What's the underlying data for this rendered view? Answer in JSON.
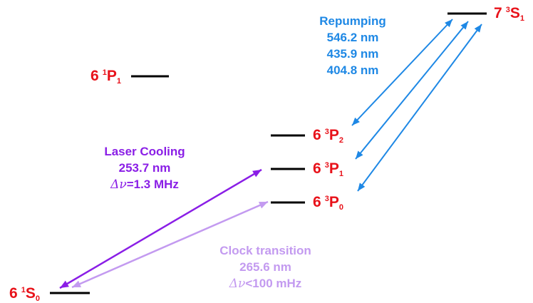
{
  "colors": {
    "level_text": "#e8121a",
    "level_line": "#000000",
    "repump": "#1e88e5",
    "cooling": "#8a1ee6",
    "clock": "#c39af0"
  },
  "levels": {
    "s0": {
      "n": "6",
      "mult": "1",
      "L": "S",
      "J": "0"
    },
    "p1_singlet": {
      "n": "6",
      "mult": "1",
      "L": "P",
      "J": "1"
    },
    "p2": {
      "n": "6",
      "mult": "3",
      "L": "P",
      "J": "2"
    },
    "p1": {
      "n": "6",
      "mult": "3",
      "L": "P",
      "J": "1"
    },
    "p0": {
      "n": "6",
      "mult": "3",
      "L": "P",
      "J": "0"
    },
    "s1": {
      "n": "7",
      "mult": "3",
      "L": "S",
      "J": "1"
    }
  },
  "repumping": {
    "title": "Repumping",
    "wavelengths": [
      "546.2 nm",
      "435.9 nm",
      "404.8 nm"
    ]
  },
  "laser_cooling": {
    "title": "Laser Cooling",
    "wavelength": "253.7 nm",
    "delta_symbol": "Δν",
    "relation": "=",
    "linewidth": "1.3 MHz"
  },
  "clock_transition": {
    "title": "Clock transition",
    "wavelength": "265.6 nm",
    "delta_symbol": "Δν",
    "relation": "<",
    "linewidth": "100 mHz"
  }
}
